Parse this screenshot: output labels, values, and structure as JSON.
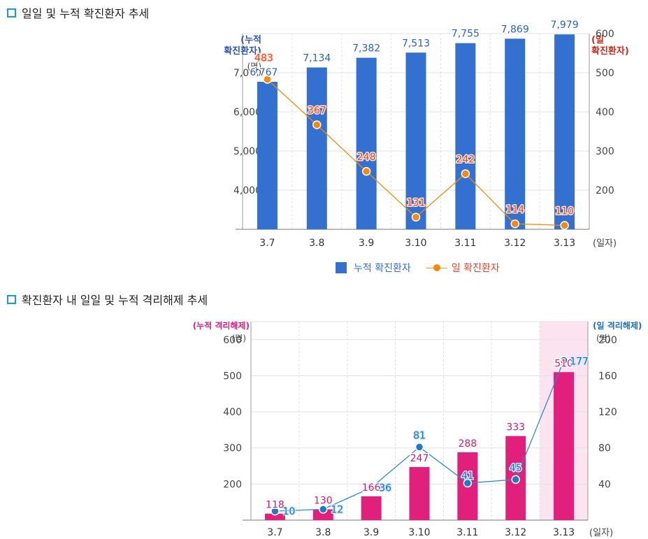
{
  "section1": {
    "title": "일일 및 누적 확진환자 추세"
  },
  "section2": {
    "title": "확진환자 내 일일 및 누적 격리해제 추세"
  },
  "legend1": {
    "bar_label": "누적 확진환자",
    "line_label": "일 확진환자"
  },
  "colors": {
    "blue": "#3370cf",
    "orange": "#f58a0b",
    "red_label": "#e8442a",
    "pink": "#e0207a",
    "lightblue": "#1a80d0",
    "highlight": "#fbe4f0"
  },
  "chart_data": [
    {
      "type": "bar",
      "title": "일일 및 누적 확진환자 추세",
      "categories": [
        "3.7",
        "3.8",
        "3.9",
        "3.10",
        "3.11",
        "3.12",
        "3.13"
      ],
      "xunit": "(일자)",
      "left_axis": {
        "label_line1": "(누적",
        "label_line2": "확진환자)",
        "unit": "(명)",
        "ticks": [
          "4,000",
          "5,000",
          "6,000",
          "7,000"
        ],
        "tick_values": [
          4000,
          5000,
          6000,
          7000
        ],
        "ylim": [
          3000,
          8000
        ]
      },
      "right_axis": {
        "label_line1": "(일",
        "label_line2": "확진환자)",
        "ticks": [
          "200",
          "300",
          "400",
          "500",
          "600"
        ],
        "tick_values": [
          200,
          300,
          400,
          500,
          600
        ],
        "ylim": [
          100,
          600
        ]
      },
      "series": [
        {
          "name": "누적 확진환자",
          "type": "bar",
          "axis": "left",
          "values": [
            6767,
            7134,
            7382,
            7513,
            7755,
            7869,
            7979
          ],
          "labels": [
            "6,767",
            "7,134",
            "7,382",
            "7,513",
            "7,755",
            "7,869",
            "7,979"
          ]
        },
        {
          "name": "일 확진환자",
          "type": "line",
          "axis": "right",
          "values": [
            483,
            367,
            248,
            131,
            242,
            114,
            110
          ],
          "labels": [
            "483",
            "367",
            "248",
            "131",
            "242",
            "114",
            "110"
          ]
        }
      ]
    },
    {
      "type": "bar",
      "title": "확진환자 내 일일 및 누적 격리해제 추세",
      "categories": [
        "3.7",
        "3.8",
        "3.9",
        "3.10",
        "3.11",
        "3.12",
        "3.13"
      ],
      "xunit": "(일자)",
      "highlight_category": "3.13",
      "left_axis": {
        "label": "(누적 격리해제)",
        "unit": "(명)",
        "ticks": [
          "200",
          "300",
          "400",
          "500",
          "600"
        ],
        "tick_values": [
          200,
          300,
          400,
          500,
          600
        ],
        "ylim": [
          100,
          650
        ]
      },
      "right_axis": {
        "label": "(일 격리해제)",
        "unit": "(명)",
        "ticks": [
          "40",
          "80",
          "120",
          "160",
          "200"
        ],
        "tick_values": [
          40,
          80,
          120,
          160,
          200
        ],
        "ylim": [
          0,
          220
        ]
      },
      "series": [
        {
          "name": "누적 격리해제",
          "type": "bar",
          "axis": "left",
          "values": [
            118,
            130,
            166,
            247,
            288,
            333,
            510
          ],
          "labels": [
            "118",
            "130",
            "166",
            "247",
            "288",
            "333",
            "510"
          ]
        },
        {
          "name": "일 격리해제",
          "type": "line",
          "axis": "right",
          "values": [
            10,
            12,
            36,
            81,
            41,
            45,
            177
          ],
          "labels": [
            "10",
            "12",
            "36",
            "81",
            "41",
            "45",
            "177"
          ]
        }
      ]
    }
  ]
}
